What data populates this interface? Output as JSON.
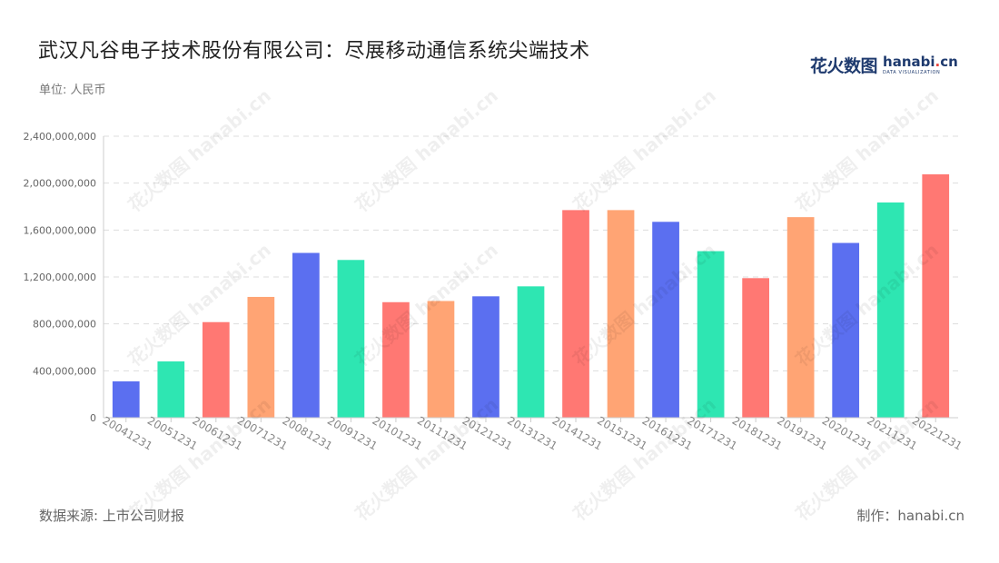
{
  "header": {
    "title": "武汉凡谷电子技术股份有限公司：尽展移动通信系统尖端技术",
    "unit": "单位: 人民币"
  },
  "logo": {
    "cn": "花火数图",
    "en_main": "hanabi",
    "en_dot": ".",
    "en_tld": "cn",
    "sub": "DATA VISUALIZATION"
  },
  "footer": {
    "source": "数据来源: 上市公司财报",
    "maker": "制作：hanabi.cn"
  },
  "watermark_text": "花火数图 hanabi.cn",
  "colors": {
    "blue": "#5b6ff0",
    "green": "#2ee6b2",
    "red": "#ff7873",
    "orange": "#ffa474",
    "axis": "#cccccc",
    "grid": "#dddddd",
    "tick_text": "#666666"
  },
  "chart_data": {
    "type": "bar",
    "categories": [
      "20041231",
      "20051231",
      "20061231",
      "20071231",
      "20081231",
      "20091231",
      "20101231",
      "20111231",
      "20121231",
      "20131231",
      "20141231",
      "20151231",
      "20161231",
      "20171231",
      "20181231",
      "20191231",
      "20201231",
      "20211231",
      "20221231"
    ],
    "values": [
      310000000,
      480000000,
      815000000,
      1030000000,
      1405000000,
      1345000000,
      985000000,
      995000000,
      1035000000,
      1120000000,
      1770000000,
      1770000000,
      1670000000,
      1420000000,
      1190000000,
      1710000000,
      1490000000,
      1835000000,
      2075000000
    ],
    "bar_colors": [
      "blue",
      "green",
      "red",
      "orange",
      "blue",
      "green",
      "red",
      "orange",
      "blue",
      "green",
      "red",
      "orange",
      "blue",
      "green",
      "red",
      "orange",
      "blue",
      "green",
      "red"
    ],
    "yticks": [
      0,
      400000000,
      800000000,
      1200000000,
      1600000000,
      2000000000,
      2400000000
    ],
    "ytick_labels": [
      "0",
      "400,000,000",
      "800,000,000",
      "1,200,000,000",
      "1,600,000,000",
      "2,000,000,000",
      "2,400,000,000"
    ],
    "ylim": [
      0,
      2400000000
    ],
    "xlabel": "",
    "ylabel": "",
    "grid": true,
    "legend": false
  }
}
